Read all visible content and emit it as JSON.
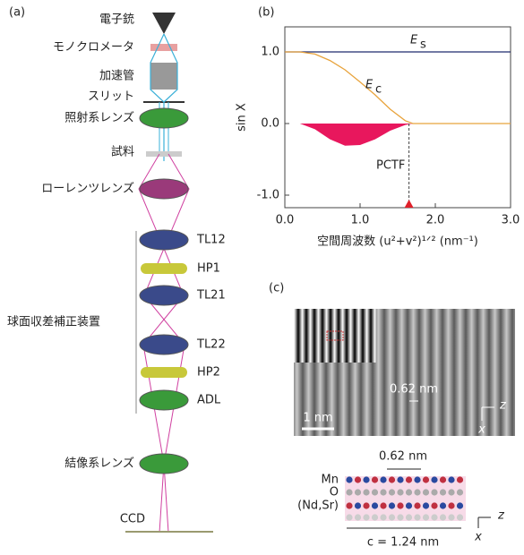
{
  "panel_a": {
    "label": "(a)",
    "components": [
      "電子銃",
      "モノクロメータ",
      "加速管",
      "スリット",
      "照射系レンズ",
      "試料",
      "ローレンツレンズ",
      "結像系レンズ",
      "CCD"
    ],
    "corrector": {
      "label": "球面収差補正装置",
      "elements": [
        "TL12",
        "HP1",
        "TL21",
        "TL22",
        "HP2",
        "ADL"
      ]
    }
  },
  "chart_data": {
    "type": "line",
    "panel_label": "(b)",
    "x_label": "空間周波数 (u²+v²)¹ᐟ² (nm⁻¹)",
    "y_label": "sin X",
    "x": [
      0,
      0.2,
      0.4,
      0.6,
      0.8,
      1.0,
      1.2,
      1.4,
      1.6,
      1.7,
      2.0,
      2.5,
      3.0
    ],
    "series": [
      {
        "name": "E",
        "subscript": "s",
        "color": "#1f2a6e",
        "values": [
          1,
          1,
          1,
          1,
          1,
          1,
          1,
          1,
          1,
          1,
          1,
          1,
          1
        ]
      },
      {
        "name": "E",
        "subscript": "c",
        "color": "#e8a33c",
        "values": [
          1,
          1,
          0.97,
          0.88,
          0.75,
          0.58,
          0.4,
          0.2,
          0.04,
          0,
          0,
          0,
          0
        ]
      },
      {
        "name": "PCTF",
        "color": "#e8175d",
        "fill": true,
        "values": [
          0,
          0,
          -0.08,
          -0.22,
          -0.31,
          -0.3,
          -0.22,
          -0.1,
          -0.02,
          0,
          0,
          0,
          0
        ]
      }
    ],
    "cutoff_x": 1.65,
    "xlim": [
      0,
      3
    ],
    "ylim": [
      -1.175,
      1.35
    ],
    "xticks": [
      {
        "value": 0,
        "label": "0.0"
      },
      {
        "value": 1,
        "label": "1.0"
      },
      {
        "value": 2,
        "label": "2.0"
      },
      {
        "value": 3,
        "label": "3.0"
      }
    ],
    "yticks": [
      {
        "value": -1,
        "label": "-1.0"
      },
      {
        "value": 0,
        "label": "0.0"
      },
      {
        "value": 1,
        "label": "1.0"
      }
    ]
  },
  "panel_c": {
    "label": "(c)",
    "spacing": "0.62 nm",
    "scale_bar": "1 nm",
    "axis_z": "z",
    "axis_x": "x",
    "atoms": [
      "Mn",
      "O",
      "(Nd,Sr)"
    ],
    "model_spacing": "0.62 nm",
    "c_param": "c = 1.24 nm",
    "axis2_z": "z",
    "axis2_x": "x"
  }
}
